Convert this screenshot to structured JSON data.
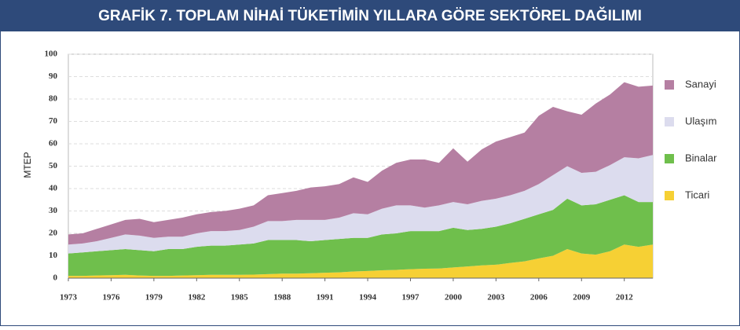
{
  "chart_data": {
    "type": "stacked_area",
    "title": "GRAFİK 7. TOPLAM NİHAİ TÜKETİMİN YILLARA GÖRE SEKTÖREL DAĞILIMI",
    "y_label": "MTEP",
    "x": [
      1973,
      1974,
      1975,
      1976,
      1977,
      1978,
      1979,
      1980,
      1981,
      1982,
      1983,
      1984,
      1985,
      1986,
      1987,
      1988,
      1989,
      1990,
      1991,
      1992,
      1993,
      1994,
      1995,
      1996,
      1997,
      1998,
      1999,
      2000,
      2001,
      2002,
      2003,
      2004,
      2005,
      2006,
      2007,
      2008,
      2009,
      2010,
      2011,
      2012,
      2013,
      2014
    ],
    "series": [
      {
        "name": "Sanayi",
        "color": "#b57fa2",
        "values": [
          4.5,
          4.5,
          5.5,
          6,
          6.5,
          7.5,
          7,
          7.5,
          8.5,
          8.5,
          8.5,
          9,
          9.5,
          9.5,
          11.5,
          12.5,
          13,
          14.5,
          15,
          15,
          16,
          14.5,
          17,
          19,
          20.5,
          21.5,
          19,
          24,
          19,
          23,
          25.5,
          26,
          26,
          30.5,
          30.5,
          24.5,
          26,
          30.5,
          31.5,
          33.5,
          32,
          31
        ]
      },
      {
        "name": "Ulaşım",
        "color": "#dcdcee",
        "values": [
          4,
          4,
          4.5,
          5.5,
          6.5,
          6.5,
          6,
          5.5,
          5.5,
          6,
          6.5,
          6.5,
          6.5,
          7.5,
          8.5,
          8.5,
          9,
          9.5,
          9,
          9.5,
          11,
          10.5,
          11.5,
          12.5,
          11.5,
          10.5,
          11.5,
          11.5,
          11.5,
          12.5,
          12.5,
          12.5,
          12.5,
          13.5,
          15.5,
          14.5,
          14.5,
          14.5,
          15.5,
          17,
          19.5,
          21
        ]
      },
      {
        "name": "Binalar",
        "color": "#6fbf4c",
        "values": [
          10,
          10.5,
          10.8,
          11.2,
          11.5,
          11.3,
          11,
          12,
          11.8,
          12.7,
          13,
          13,
          13.5,
          13.9,
          15.2,
          15,
          15,
          14.3,
          14.6,
          14.9,
          15,
          14.8,
          16,
          16.3,
          17,
          16.8,
          16.7,
          17.7,
          16.3,
          16.3,
          17,
          17.7,
          19,
          19.7,
          20.5,
          22.5,
          21.5,
          22.5,
          23,
          22,
          20,
          19
        ]
      },
      {
        "name": "Ticari",
        "color": "#f6d034",
        "values": [
          1,
          1,
          1.2,
          1.3,
          1.5,
          1.2,
          1,
          1,
          1.2,
          1.3,
          1.5,
          1.5,
          1.5,
          1.6,
          1.8,
          2,
          2,
          2.2,
          2.4,
          2.6,
          3,
          3.2,
          3.5,
          3.7,
          4,
          4.2,
          4.3,
          4.8,
          5.2,
          5.7,
          6,
          6.8,
          7.5,
          8.8,
          10,
          13,
          11,
          10.5,
          12,
          15,
          14,
          15
        ]
      }
    ],
    "xlim": [
      1973,
      2014
    ],
    "xticks": [
      1973,
      1976,
      1979,
      1982,
      1985,
      1988,
      1991,
      1994,
      1997,
      2000,
      2003,
      2006,
      2009,
      2012
    ],
    "ylim": [
      0,
      100
    ],
    "yticks": [
      0,
      10,
      20,
      30,
      40,
      50,
      60,
      70,
      80,
      90,
      100
    ],
    "grid": true,
    "legend": "right"
  }
}
